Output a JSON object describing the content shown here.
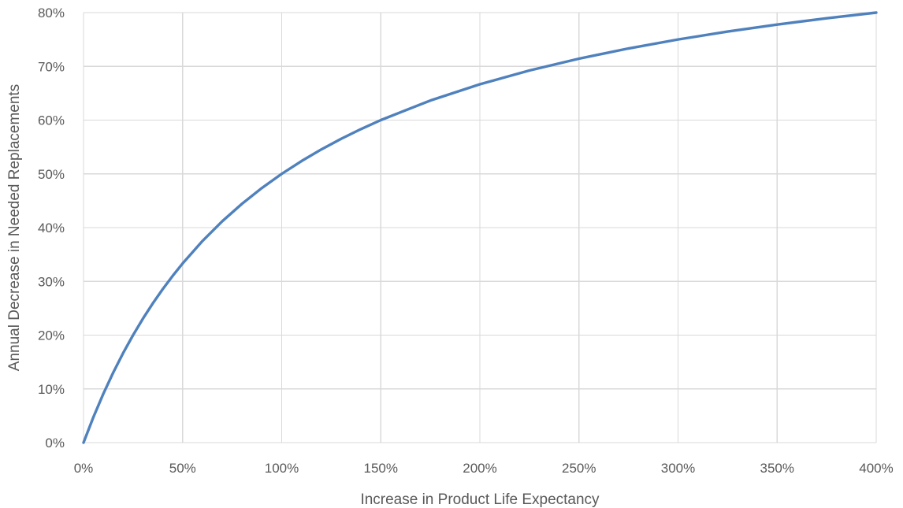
{
  "chart_data": {
    "type": "line",
    "title": "",
    "xlabel": "Increase in Product Life Expectancy",
    "ylabel": "Annual Decrease in Needed Replacements",
    "xlim": [
      0,
      4
    ],
    "ylim": [
      0,
      0.8
    ],
    "x_ticks": [
      {
        "value": 0,
        "label": "0%"
      },
      {
        "value": 0.5,
        "label": "50%"
      },
      {
        "value": 1,
        "label": "100%"
      },
      {
        "value": 1.5,
        "label": "150%"
      },
      {
        "value": 2,
        "label": "200%"
      },
      {
        "value": 2.5,
        "label": "250%"
      },
      {
        "value": 3,
        "label": "300%"
      },
      {
        "value": 3.5,
        "label": "350%"
      },
      {
        "value": 4,
        "label": "400%"
      }
    ],
    "y_ticks": [
      {
        "value": 0,
        "label": "0%"
      },
      {
        "value": 0.1,
        "label": "10%"
      },
      {
        "value": 0.2,
        "label": "20%"
      },
      {
        "value": 0.3,
        "label": "30%"
      },
      {
        "value": 0.4,
        "label": "40%"
      },
      {
        "value": 0.5,
        "label": "50%"
      },
      {
        "value": 0.6,
        "label": "60%"
      },
      {
        "value": 0.7,
        "label": "70%"
      },
      {
        "value": 0.8,
        "label": "80%"
      }
    ],
    "grid": {
      "vertical": true,
      "horizontal": true
    },
    "legend": "none",
    "series": [
      {
        "color": "#4f81bd",
        "points": [
          {
            "x": 0,
            "y": 0
          },
          {
            "x": 0.05,
            "y": 0.0476
          },
          {
            "x": 0.1,
            "y": 0.0909
          },
          {
            "x": 0.15,
            "y": 0.1304
          },
          {
            "x": 0.2,
            "y": 0.1667
          },
          {
            "x": 0.25,
            "y": 0.2
          },
          {
            "x": 0.3,
            "y": 0.2308
          },
          {
            "x": 0.35,
            "y": 0.2593
          },
          {
            "x": 0.4,
            "y": 0.2857
          },
          {
            "x": 0.45,
            "y": 0.3103
          },
          {
            "x": 0.5,
            "y": 0.3333
          },
          {
            "x": 0.6,
            "y": 0.375
          },
          {
            "x": 0.7,
            "y": 0.4118
          },
          {
            "x": 0.8,
            "y": 0.4444
          },
          {
            "x": 0.9,
            "y": 0.4737
          },
          {
            "x": 1,
            "y": 0.5
          },
          {
            "x": 1.1,
            "y": 0.5238
          },
          {
            "x": 1.2,
            "y": 0.5455
          },
          {
            "x": 1.3,
            "y": 0.5652
          },
          {
            "x": 1.4,
            "y": 0.5833
          },
          {
            "x": 1.5,
            "y": 0.6
          },
          {
            "x": 1.75,
            "y": 0.6364
          },
          {
            "x": 2,
            "y": 0.6667
          },
          {
            "x": 2.25,
            "y": 0.6923
          },
          {
            "x": 2.5,
            "y": 0.7143
          },
          {
            "x": 2.75,
            "y": 0.7333
          },
          {
            "x": 3,
            "y": 0.75
          },
          {
            "x": 3.25,
            "y": 0.7647
          },
          {
            "x": 3.5,
            "y": 0.7778
          },
          {
            "x": 3.75,
            "y": 0.7895
          },
          {
            "x": 4,
            "y": 0.8
          }
        ]
      }
    ]
  }
}
